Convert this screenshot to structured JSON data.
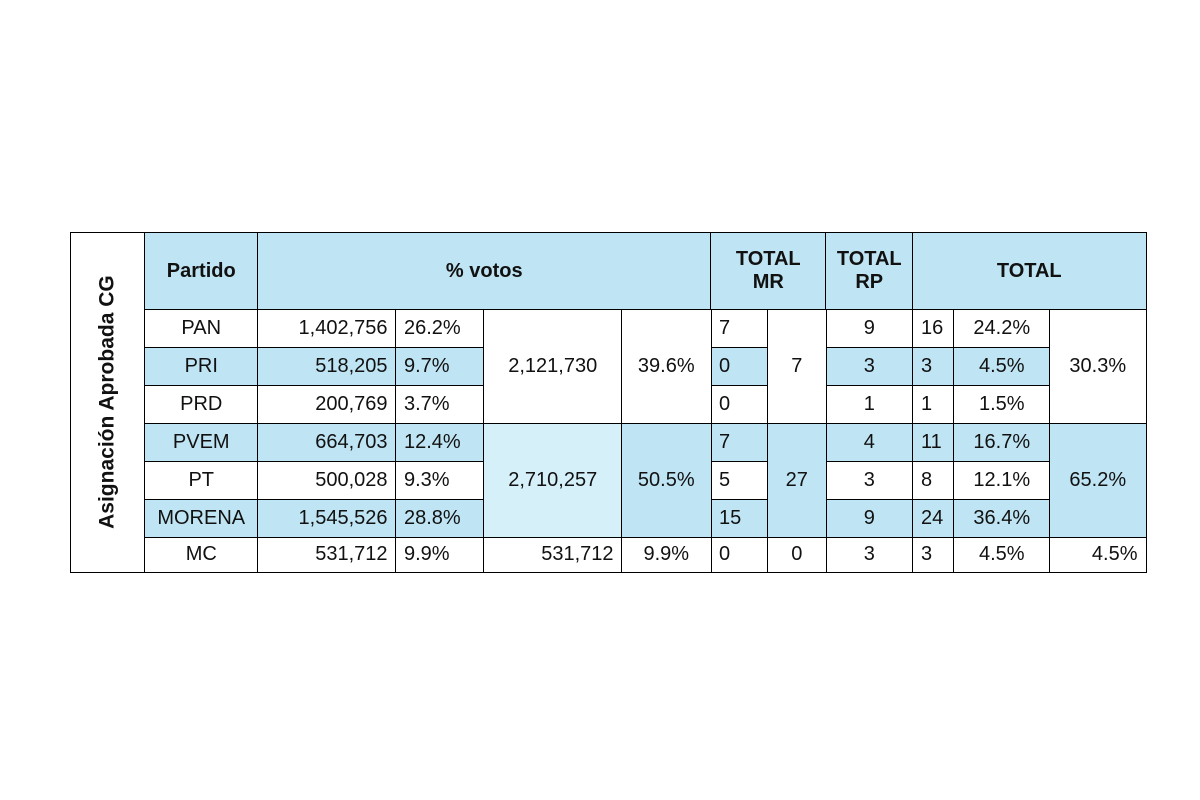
{
  "side_label": "Asignación Aprobada CG",
  "headers": [
    "Partido",
    "% votos",
    "TOTAL\nMR",
    "TOTAL\nRP",
    "TOTAL"
  ],
  "groups": [
    {
      "rows": [
        {
          "party": "PAN",
          "votes": "1,402,756",
          "pct": "26.2%",
          "mr": "7",
          "rp": "9",
          "seats": "16",
          "seat_pct": "24.2%"
        },
        {
          "party": "PRI",
          "votes": "518,205",
          "pct": "9.7%",
          "mr": "0",
          "rp": "3",
          "seats": "3",
          "seat_pct": "4.5%"
        },
        {
          "party": "PRD",
          "votes": "200,769",
          "pct": "3.7%",
          "mr": "0",
          "rp": "1",
          "seats": "1",
          "seat_pct": "1.5%"
        }
      ],
      "votes": "2,121,730",
      "pct": "39.6%",
      "mr": "7",
      "total_pct": "30.3%"
    },
    {
      "rows": [
        {
          "party": "PVEM",
          "votes": "664,703",
          "pct": "12.4%",
          "mr": "7",
          "rp": "4",
          "seats": "11",
          "seat_pct": "16.7%"
        },
        {
          "party": "PT",
          "votes": "500,028",
          "pct": "9.3%",
          "mr": "5",
          "rp": "3",
          "seats": "8",
          "seat_pct": "12.1%"
        },
        {
          "party": "MORENA",
          "votes": "1,545,526",
          "pct": "28.8%",
          "mr": "15",
          "rp": "9",
          "seats": "24",
          "seat_pct": "36.4%"
        }
      ],
      "votes": "2,710,257",
      "pct": "50.5%",
      "mr": "27",
      "total_pct": "65.2%"
    },
    {
      "rows": [
        {
          "party": "MC",
          "votes": "531,712",
          "pct": "9.9%",
          "mr": "0",
          "rp": "3",
          "seats": "3",
          "seat_pct": "4.5%"
        }
      ],
      "votes": "531,712",
      "pct": "9.9%",
      "mr": "0",
      "total_pct": "4.5%"
    }
  ]
}
